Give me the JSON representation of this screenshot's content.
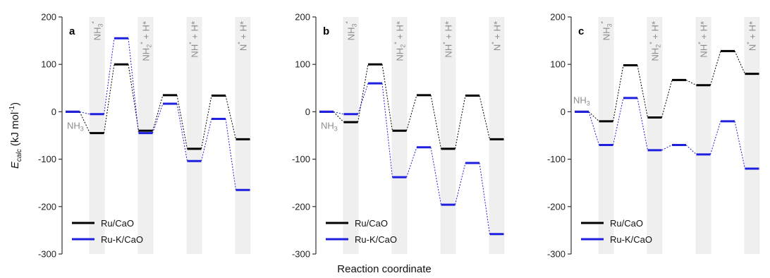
{
  "chart_data": [
    {
      "type": "line",
      "panel": "a",
      "x": [
        0,
        1,
        2,
        3,
        4,
        5,
        6,
        7
      ],
      "ylim": [
        -300,
        200
      ],
      "yticks": [
        -300,
        -200,
        -100,
        0,
        100,
        200
      ],
      "series": [
        {
          "name": "Ru/CaO",
          "color": "#000000",
          "values": [
            0,
            -45,
            100,
            -40,
            35,
            -78,
            34,
            -58
          ]
        },
        {
          "name": "Ru-K/CaO",
          "color": "#1f1fe0",
          "values": [
            0,
            -5,
            155,
            -45,
            17,
            -104,
            -15,
            -165
          ]
        }
      ],
      "highlight_x": [
        1,
        3,
        5,
        7
      ],
      "state_labels": [
        {
          "x": 1,
          "text": "NH3*",
          "base": "NH",
          "sub": "3",
          "sup": "*",
          "tail": ""
        },
        {
          "x": 3,
          "text": "NH2* + H*",
          "base": "NH",
          "sub": "2",
          "sup": "*",
          "tail": " + H*"
        },
        {
          "x": 5,
          "text": "NH* + H*",
          "base": "NH",
          "sub": "",
          "sup": "*",
          "tail": " + H*"
        },
        {
          "x": 7,
          "text": "N* + H*",
          "base": "N",
          "sub": "",
          "sup": "*",
          "tail": " + H*"
        }
      ],
      "start_label": {
        "text": "NH3",
        "base": "NH",
        "sub": "3"
      }
    },
    {
      "type": "line",
      "panel": "b",
      "x": [
        0,
        1,
        2,
        3,
        4,
        5,
        6,
        7
      ],
      "ylim": [
        -300,
        200
      ],
      "yticks": [
        -300,
        -200,
        -100,
        0,
        100,
        200
      ],
      "series": [
        {
          "name": "Ru/CaO",
          "color": "#000000",
          "values": [
            0,
            -22,
            100,
            -40,
            35,
            -78,
            34,
            -58
          ]
        },
        {
          "name": "Ru-K/CaO",
          "color": "#1f1fe0",
          "values": [
            0,
            -5,
            60,
            -138,
            -75,
            -196,
            -108,
            -258
          ]
        }
      ],
      "highlight_x": [
        1,
        3,
        5,
        7
      ],
      "state_labels": [
        {
          "x": 1,
          "text": "NH3*",
          "base": "NH",
          "sub": "3",
          "sup": "*",
          "tail": ""
        },
        {
          "x": 3,
          "text": "NH2* + H*",
          "base": "NH",
          "sub": "2",
          "sup": "*",
          "tail": " + H*"
        },
        {
          "x": 5,
          "text": "NH* + H*",
          "base": "NH",
          "sub": "",
          "sup": "*",
          "tail": " + H*"
        },
        {
          "x": 7,
          "text": "N* + H*",
          "base": "N",
          "sub": "",
          "sup": "*",
          "tail": " + H*"
        }
      ],
      "start_label": {
        "text": "NH3",
        "base": "NH",
        "sub": "3"
      }
    },
    {
      "type": "line",
      "panel": "c",
      "x": [
        0,
        1,
        2,
        3,
        4,
        5,
        6,
        7
      ],
      "ylim": [
        -300,
        200
      ],
      "yticks": [
        -300,
        -200,
        -100,
        0,
        100,
        200
      ],
      "series": [
        {
          "name": "Ru/CaO",
          "color": "#000000",
          "values": [
            0,
            -20,
            98,
            -12,
            67,
            56,
            128,
            80
          ]
        },
        {
          "name": "Ru-K/CaO",
          "color": "#1f1fe0",
          "values": [
            0,
            -70,
            29,
            -81,
            -70,
            -90,
            -20,
            -120
          ]
        }
      ],
      "highlight_x": [
        1,
        3,
        5,
        7
      ],
      "state_labels": [
        {
          "x": 1,
          "text": "NH3*",
          "base": "NH",
          "sub": "3",
          "sup": "*",
          "tail": ""
        },
        {
          "x": 3,
          "text": "NH2* + H*",
          "base": "NH",
          "sub": "2",
          "sup": "*",
          "tail": " + H*"
        },
        {
          "x": 5,
          "text": "NH* + H*",
          "base": "NH",
          "sub": "",
          "sup": "*",
          "tail": " + H*"
        },
        {
          "x": 7,
          "text": "N* + H*",
          "base": "N",
          "sub": "",
          "sup": "*",
          "tail": " + H*"
        }
      ],
      "start_label": {
        "text": "NH3",
        "base": "NH",
        "sub": "3"
      }
    }
  ],
  "axes": {
    "ylabel": "Ecalc (kJ mol-1)",
    "ylabel_base": "E",
    "ylabel_sub": "calc",
    "ylabel_unit": " (kJ mol",
    "ylabel_unit_sup": "-1",
    "ylabel_close": ")",
    "xlabel": "Reaction coordinate"
  }
}
